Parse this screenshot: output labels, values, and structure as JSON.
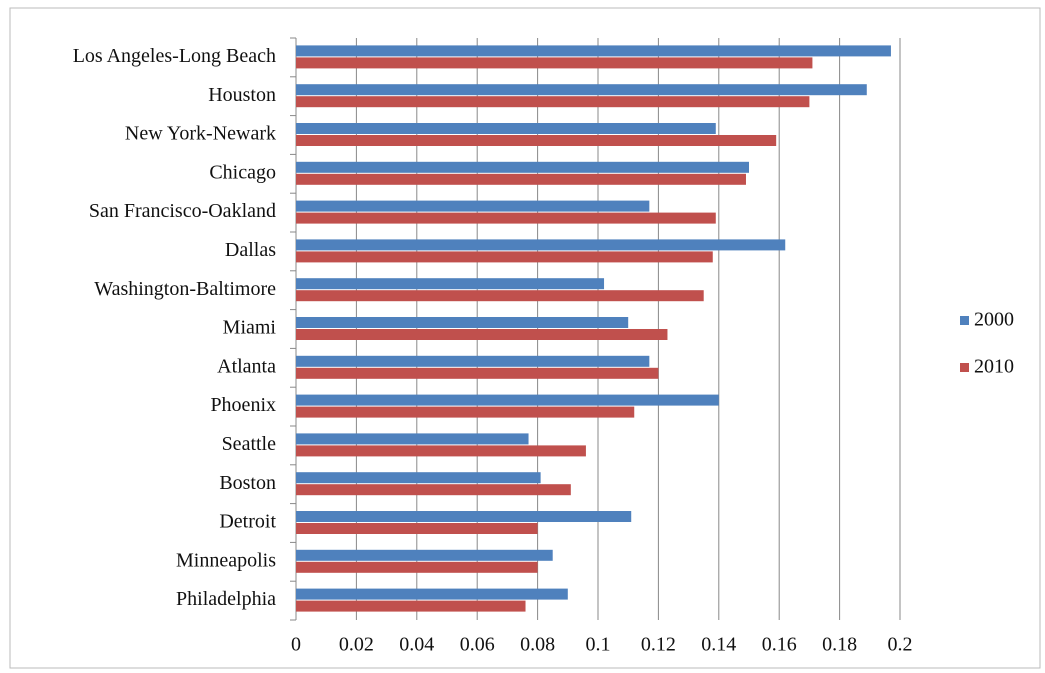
{
  "chart_data": {
    "type": "hbar",
    "categories": [
      "Los Angeles-Long Beach",
      "Houston",
      "New York-Newark",
      "Chicago",
      "San Francisco-Oakland",
      "Dallas",
      "Washington-Baltimore",
      "Miami",
      "Atlanta",
      "Phoenix",
      "Seattle",
      "Boston",
      "Detroit",
      "Minneapolis",
      "Philadelphia"
    ],
    "series": [
      {
        "name": "2000",
        "color": "#4f81bd",
        "values": [
          0.197,
          0.189,
          0.139,
          0.15,
          0.117,
          0.162,
          0.102,
          0.11,
          0.117,
          0.14,
          0.077,
          0.081,
          0.111,
          0.085,
          0.09
        ]
      },
      {
        "name": "2010",
        "color": "#c0504d",
        "values": [
          0.171,
          0.17,
          0.159,
          0.149,
          0.139,
          0.138,
          0.135,
          0.123,
          0.12,
          0.112,
          0.096,
          0.091,
          0.08,
          0.08,
          0.076
        ]
      }
    ],
    "xlim": [
      0,
      0.2
    ],
    "xticks": [
      0,
      0.02,
      0.04,
      0.06,
      0.08,
      0.1,
      0.12,
      0.14,
      0.16,
      0.18,
      0.2
    ],
    "grid": true,
    "legend": "right"
  }
}
